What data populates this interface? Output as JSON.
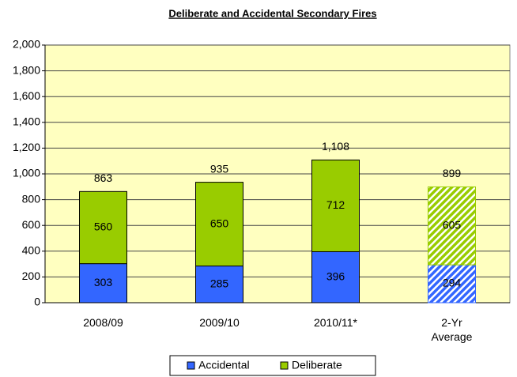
{
  "chart_data": {
    "type": "stacked_bar",
    "title": "Deliberate and Accidental Secondary Fires",
    "categories": [
      "2008/09",
      "2009/10",
      "2010/11*",
      "2-Yr Average"
    ],
    "series": [
      {
        "name": "Accidental",
        "color": "#3366ff",
        "values": [
          303,
          285,
          396,
          294
        ]
      },
      {
        "name": "Deliberate",
        "color": "#99cc00",
        "values": [
          560,
          650,
          712,
          605
        ]
      }
    ],
    "totals": {
      "values": [
        863,
        935,
        1108,
        899
      ],
      "value_labels": [
        "863",
        "935",
        "1,108",
        "899"
      ]
    },
    "hatched": [
      false,
      false,
      false,
      true
    ],
    "ylim": [
      0,
      2000
    ],
    "yticks": [
      0,
      200,
      400,
      600,
      800,
      {
        "value": 1000,
        "label": "1,000"
      },
      {
        "value": 1200,
        "label": "1,200"
      },
      {
        "value": 1400,
        "label": "1,400"
      },
      {
        "value": 1600,
        "label": "1,600"
      },
      {
        "value": 1800,
        "label": "1,800"
      },
      {
        "value": 2000,
        "label": "2,000"
      }
    ],
    "grid": true,
    "legend": "bottom"
  }
}
